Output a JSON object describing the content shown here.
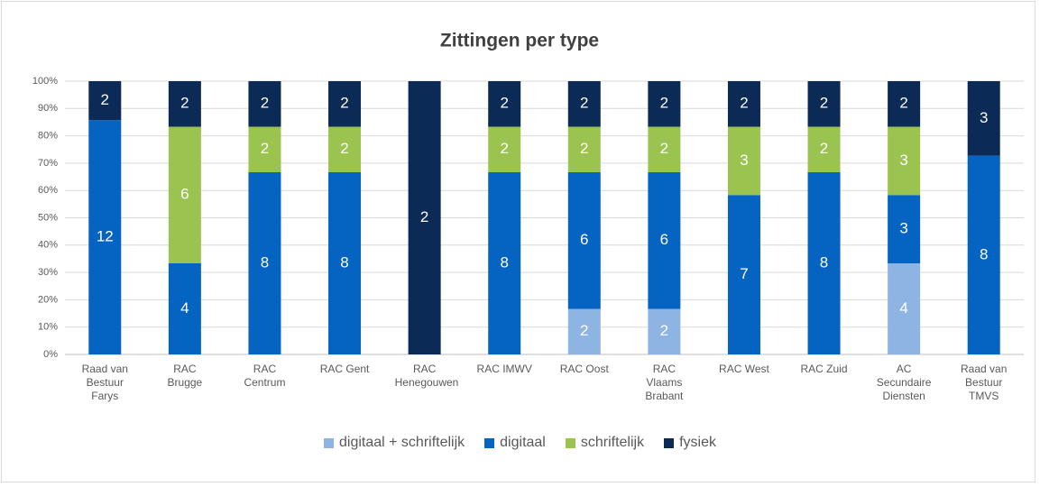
{
  "chart_data": {
    "type": "bar",
    "stacking": "percent",
    "title": "Zittingen per type",
    "categories": [
      "Raad van Bestuur Farys",
      "RAC Brugge",
      "RAC Centrum",
      "RAC Gent",
      "RAC Henegouwen",
      "RAC IMWV",
      "RAC Oost",
      "RAC Vlaams Brabant",
      "RAC West",
      "RAC Zuid",
      "AC Secundaire Diensten",
      "Raad van Bestuur TMVS"
    ],
    "series": [
      {
        "name": "digitaal + schriftelijk",
        "color": "#8eb4e3",
        "values": [
          null,
          null,
          null,
          null,
          null,
          null,
          2,
          2,
          null,
          null,
          4,
          null
        ]
      },
      {
        "name": "digitaal",
        "color": "#0563c1",
        "values": [
          12,
          4,
          8,
          8,
          null,
          8,
          6,
          6,
          7,
          8,
          3,
          8
        ]
      },
      {
        "name": "schriftelijk",
        "color": "#9bc350",
        "values": [
          null,
          6,
          2,
          2,
          null,
          2,
          2,
          2,
          3,
          2,
          3,
          null
        ]
      },
      {
        "name": "fysiek",
        "color": "#0b2a55",
        "values": [
          2,
          2,
          2,
          2,
          2,
          2,
          2,
          2,
          2,
          2,
          2,
          3
        ]
      }
    ],
    "ylim": [
      0,
      100
    ],
    "yticks": [
      {
        "value": 0,
        "label": "0%"
      },
      {
        "value": 10,
        "label": "10%"
      },
      {
        "value": 20,
        "label": "20%"
      },
      {
        "value": 30,
        "label": "30%"
      },
      {
        "value": 40,
        "label": "40%"
      },
      {
        "value": 50,
        "label": "50%"
      },
      {
        "value": 60,
        "label": "60%"
      },
      {
        "value": 70,
        "label": "70%"
      },
      {
        "value": 80,
        "label": "80%"
      },
      {
        "value": 90,
        "label": "90%"
      },
      {
        "value": 100,
        "label": "100%"
      }
    ],
    "grid": true,
    "legend": "bottom"
  }
}
